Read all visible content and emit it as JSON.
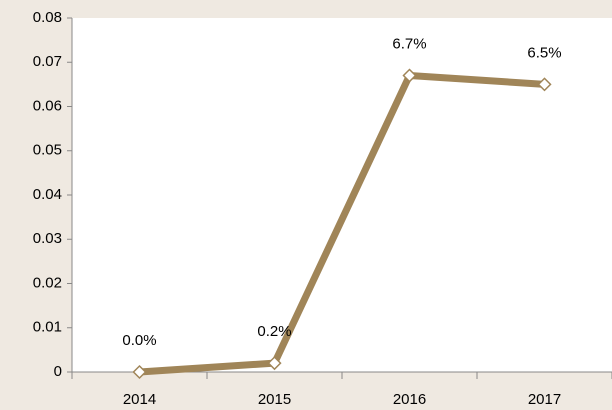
{
  "chart_data": {
    "type": "line",
    "categories": [
      "2014",
      "2015",
      "2016",
      "2017"
    ],
    "series": [
      {
        "color": "#a08558",
        "values": [
          0.0,
          0.002,
          0.067,
          0.065
        ],
        "value_labels": [
          "0.0%",
          "0.2%",
          "6.7%",
          "6.5%"
        ]
      }
    ],
    "ylim": [
      0,
      0.08
    ],
    "yticks": [
      0,
      0.01,
      0.02,
      0.03,
      0.04,
      0.05,
      0.06,
      0.07,
      0.08
    ],
    "grid": false
  }
}
